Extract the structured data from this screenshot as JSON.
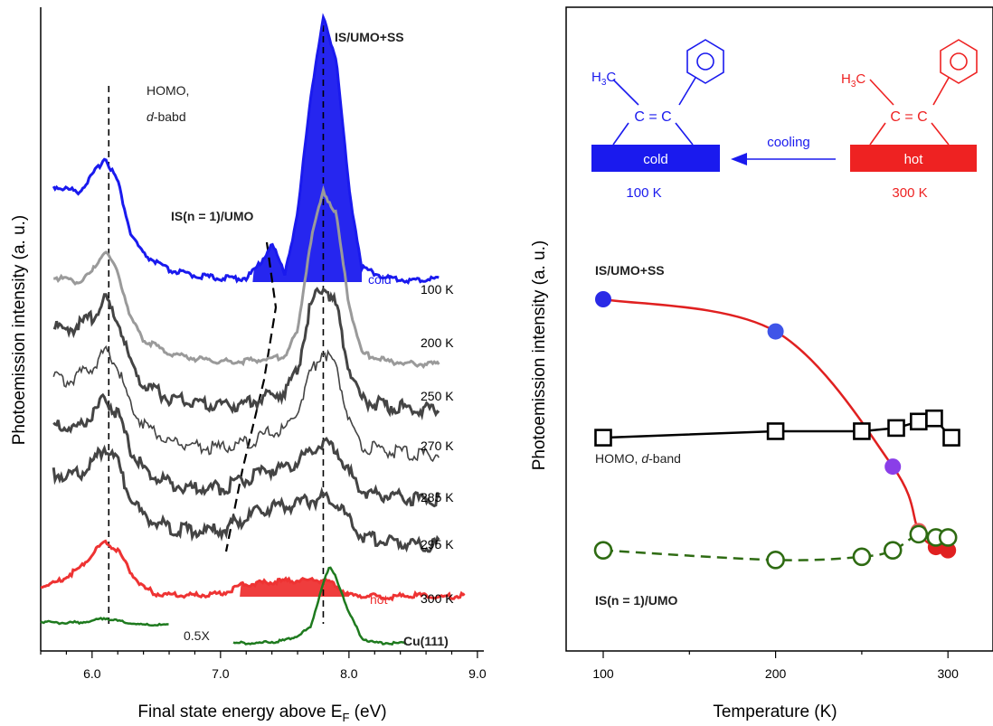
{
  "chart_data": [
    {
      "type": "line",
      "xlabel": "Final state energy above E",
      "xlabel_subscript": "F",
      "xlabel_unit": "(eV)",
      "ylabel": "Photoemission intensity (a. u.)",
      "xlim": [
        5.6,
        9.05
      ],
      "xticks": [
        6.0,
        7.0,
        8.0,
        9.0
      ],
      "xtick_labels": [
        "6.0",
        "7.0",
        "8.0",
        "9.0"
      ],
      "peak_markers_eV": [
        6.13,
        7.8
      ],
      "annotations": {
        "homo_line1": "HOMO,",
        "homo_line2_italic": "d",
        "homo_line2_rest": "-babd",
        "is_umo": "IS(n = 1)/UMO",
        "is_umo_ss": "IS/UMO+SS",
        "cold": "cold",
        "hot": "hot",
        "scale": "0.5X",
        "substrate": "Cu(111)"
      },
      "series": [
        {
          "name": "100 K",
          "color": "#1a1aee",
          "x": [
            5.7,
            5.8,
            5.9,
            6.0,
            6.1,
            6.2,
            6.3,
            6.4,
            6.6,
            6.8,
            7.0,
            7.2,
            7.3,
            7.4,
            7.5,
            7.6,
            7.7,
            7.8,
            7.9,
            8.0,
            8.1,
            8.3,
            8.5,
            8.7
          ],
          "y": [
            0.36,
            0.35,
            0.34,
            0.4,
            0.47,
            0.38,
            0.18,
            0.1,
            0.04,
            0.02,
            0.01,
            0.01,
            0.06,
            0.14,
            0.03,
            0.25,
            0.7,
            1.0,
            0.85,
            0.35,
            0.05,
            0.01,
            0.0,
            0.01
          ]
        },
        {
          "name": "200 K",
          "color": "#9a9a9a",
          "x": [
            5.7,
            5.8,
            5.9,
            6.0,
            6.1,
            6.2,
            6.3,
            6.4,
            6.6,
            6.8,
            7.0,
            7.2,
            7.4,
            7.5,
            7.6,
            7.7,
            7.8,
            7.9,
            8.0,
            8.1,
            8.3,
            8.5,
            8.7
          ],
          "y": [
            0.32,
            0.31,
            0.3,
            0.34,
            0.42,
            0.34,
            0.17,
            0.09,
            0.04,
            0.02,
            0.01,
            0.01,
            0.02,
            0.03,
            0.12,
            0.45,
            0.64,
            0.55,
            0.22,
            0.04,
            0.01,
            0.0,
            0.0
          ]
        },
        {
          "name": "250 K",
          "color": "#444444",
          "x": [
            5.7,
            5.8,
            5.9,
            6.0,
            6.1,
            6.2,
            6.3,
            6.4,
            6.6,
            6.8,
            7.0,
            7.2,
            7.4,
            7.5,
            7.6,
            7.7,
            7.8,
            7.9,
            8.0,
            8.1,
            8.3,
            8.5,
            8.7
          ],
          "y": [
            0.3,
            0.29,
            0.31,
            0.34,
            0.4,
            0.33,
            0.17,
            0.09,
            0.04,
            0.02,
            0.01,
            0.02,
            0.05,
            0.06,
            0.14,
            0.38,
            0.46,
            0.38,
            0.15,
            0.03,
            0.01,
            0.0,
            0.0
          ]
        },
        {
          "name": "270 K",
          "color": "#444444",
          "x": [
            5.7,
            5.8,
            5.9,
            6.0,
            6.1,
            6.2,
            6.3,
            6.4,
            6.6,
            6.8,
            7.0,
            7.2,
            7.4,
            7.5,
            7.6,
            7.7,
            7.8,
            7.9,
            8.0,
            8.1,
            8.3,
            8.5,
            8.7
          ],
          "y": [
            0.28,
            0.27,
            0.29,
            0.32,
            0.38,
            0.32,
            0.18,
            0.11,
            0.05,
            0.03,
            0.02,
            0.04,
            0.08,
            0.09,
            0.16,
            0.3,
            0.38,
            0.32,
            0.13,
            0.03,
            0.01,
            0.0,
            0.0
          ]
        },
        {
          "name": "285 K",
          "color": "#444444",
          "x": [
            5.7,
            5.8,
            5.9,
            6.0,
            6.1,
            6.2,
            6.3,
            6.4,
            6.6,
            6.8,
            7.0,
            7.2,
            7.4,
            7.5,
            7.6,
            7.7,
            7.8,
            7.9,
            8.0,
            8.1,
            8.3,
            8.5,
            8.7
          ],
          "y": [
            0.27,
            0.26,
            0.27,
            0.31,
            0.37,
            0.31,
            0.18,
            0.11,
            0.06,
            0.04,
            0.04,
            0.07,
            0.11,
            0.12,
            0.14,
            0.18,
            0.21,
            0.19,
            0.1,
            0.03,
            0.01,
            0.0,
            0.0
          ]
        },
        {
          "name": "295 K",
          "color": "#444444",
          "x": [
            5.7,
            5.8,
            5.9,
            6.0,
            6.1,
            6.2,
            6.3,
            6.4,
            6.6,
            6.8,
            7.0,
            7.2,
            7.4,
            7.5,
            7.6,
            7.7,
            7.8,
            7.9,
            8.0,
            8.1,
            8.3,
            8.5,
            8.7
          ],
          "y": [
            0.26,
            0.25,
            0.26,
            0.3,
            0.36,
            0.3,
            0.17,
            0.1,
            0.06,
            0.05,
            0.05,
            0.1,
            0.14,
            0.14,
            0.15,
            0.16,
            0.17,
            0.16,
            0.09,
            0.03,
            0.01,
            0.0,
            0.0
          ]
        },
        {
          "name": "300 K",
          "color": "#ee3333",
          "x": [
            5.6,
            5.7,
            5.8,
            5.9,
            6.0,
            6.1,
            6.2,
            6.3,
            6.4,
            6.5,
            6.6,
            6.8,
            7.0,
            7.2,
            7.4,
            7.6,
            7.8,
            7.9,
            8.0,
            8.1,
            8.3,
            8.5,
            8.7,
            8.9
          ],
          "y": [
            0.05,
            0.06,
            0.1,
            0.14,
            0.22,
            0.28,
            0.24,
            0.12,
            0.04,
            0.01,
            0.0,
            0.0,
            0.01,
            0.06,
            0.07,
            0.08,
            0.08,
            0.05,
            0.0,
            0.0,
            -0.01,
            0.0,
            -0.01,
            0.0
          ]
        },
        {
          "name": "Cu(111)",
          "color": "#1e7a1e",
          "x": [
            5.6,
            5.8,
            6.0,
            6.1,
            6.2,
            6.4,
            6.6
          ],
          "y": [
            0.02,
            0.01,
            0.02,
            0.04,
            0.02,
            0.0,
            0.0
          ]
        },
        {
          "name": "Cu(111) SS",
          "color": "#1e7a1e",
          "x": [
            7.1,
            7.3,
            7.5,
            7.6,
            7.7,
            7.8,
            7.85,
            7.9,
            8.0,
            8.1,
            8.2,
            8.3,
            8.45
          ],
          "y": [
            0.0,
            0.0,
            0.01,
            0.03,
            0.06,
            0.24,
            0.3,
            0.26,
            0.12,
            0.02,
            0.0,
            0.0,
            0.0
          ]
        }
      ]
    },
    {
      "type": "scatter",
      "xlabel": "Temperature (K)",
      "ylabel": "Photoemission intensity (a. u.)",
      "xlim": [
        80,
        320
      ],
      "xticks": [
        100,
        200,
        300
      ],
      "xtick_labels": [
        "100",
        "200",
        "300"
      ],
      "series_labels": {
        "is_umo_ss": "IS/UMO+SS",
        "homo_line1": "HOMO, ",
        "homo_italic": "d",
        "homo_rest": "-band",
        "is_umo": "IS(n = 1)/UMO"
      },
      "series": [
        {
          "name": "IS/UMO+SS",
          "marker": "filled circle",
          "line_color": "#e02020",
          "x": [
            100,
            200,
            268,
            283,
            293,
            300
          ],
          "y": [
            1.0,
            0.9,
            0.48,
            0.28,
            0.23,
            0.22
          ],
          "point_colors": [
            "#2a2ae6",
            "#3f55e8",
            "#8a3ee8",
            "#e85a5a",
            "#e02020",
            "#e02020"
          ]
        },
        {
          "name": "HOMO, d-band",
          "marker": "open square",
          "line_color": "#000000",
          "x": [
            100,
            200,
            250,
            270,
            283,
            292,
            302
          ],
          "y": [
            0.57,
            0.59,
            0.59,
            0.6,
            0.62,
            0.63,
            0.57
          ]
        },
        {
          "name": "IS(n = 1)/UMO",
          "marker": "open circle",
          "line_color": "#2e6b12",
          "line_style": "dashed",
          "x": [
            100,
            200,
            250,
            268,
            283,
            293,
            300
          ],
          "y": [
            0.22,
            0.19,
            0.2,
            0.22,
            0.27,
            0.26,
            0.26
          ]
        }
      ]
    }
  ],
  "inset": {
    "cold_label": "cold",
    "hot_label": "hot",
    "arrow_label": "cooling",
    "cold_temp": "100 K",
    "hot_temp": "300 K",
    "methyl_H": "H",
    "methyl_sub": "3",
    "methyl_C": "C",
    "double_bond": "C = C",
    "cold_color": "#1a1aee",
    "hot_color": "#ee2222"
  }
}
